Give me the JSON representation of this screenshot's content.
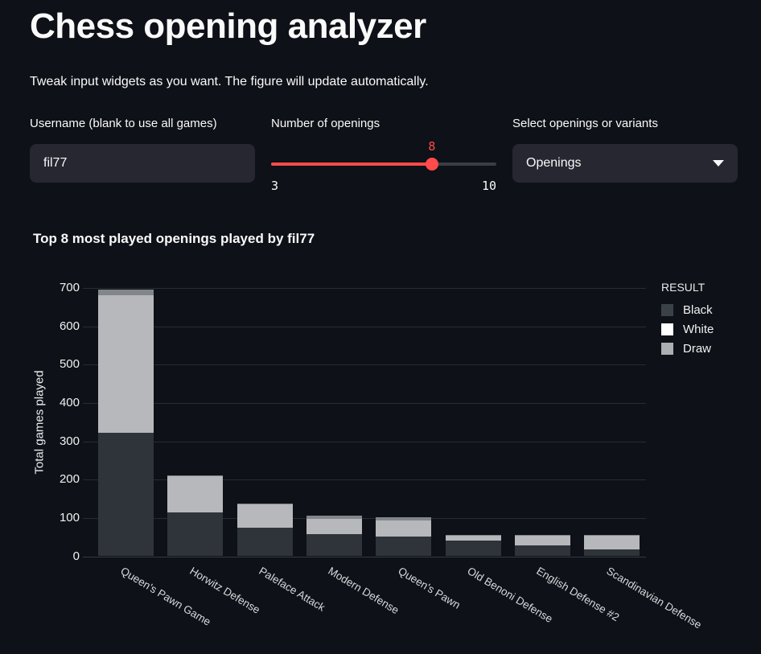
{
  "app": {
    "title": "Chess opening analyzer",
    "subtitle": "Tweak input widgets as you want. The figure will update automatically."
  },
  "widgets": {
    "username": {
      "label": "Username (blank to use all games)",
      "value": "fil77"
    },
    "openings": {
      "label": "Number of openings",
      "value": "8",
      "min": "3",
      "max": "10",
      "fraction": 0.714,
      "accent_color": "#ff4b4b"
    },
    "variant_select": {
      "label": "Select openings or variants",
      "value": "Openings"
    }
  },
  "chart": {
    "title": "Top 8 most played openings played by fil77"
  },
  "chart_data": {
    "type": "bar",
    "stacked": true,
    "title": "Top 8 most played openings played by fil77",
    "xlabel": "",
    "ylabel": "Total games played",
    "ylim": [
      0,
      700
    ],
    "yticks": [
      0,
      100,
      200,
      300,
      400,
      500,
      600,
      700
    ],
    "grid": "horizontal",
    "legend_title": "RESULT",
    "legend_position": "right-top",
    "categories": [
      "Queen's Pawn Game",
      "Horwitz Defense",
      "Paleface Attack",
      "Modern Defense",
      "Queen's Pawn",
      "Old Benoni Defense",
      "English Defense #2",
      "Scandinavian Defense"
    ],
    "series": [
      {
        "name": "Black",
        "color": "#2f343b",
        "legend_color": "#3b4148",
        "values": [
          323,
          114,
          74,
          57,
          52,
          40,
          29,
          18
        ]
      },
      {
        "name": "White",
        "color": "#b6b8bb",
        "legend_color": "#ffffff",
        "values": [
          358,
          94,
          61,
          41,
          42,
          14,
          25,
          35
        ]
      },
      {
        "name": "Draw",
        "color": "#82858a",
        "legend_color": "#adafb2",
        "values": [
          14,
          2,
          3,
          8,
          8,
          2,
          2,
          3
        ]
      }
    ]
  }
}
